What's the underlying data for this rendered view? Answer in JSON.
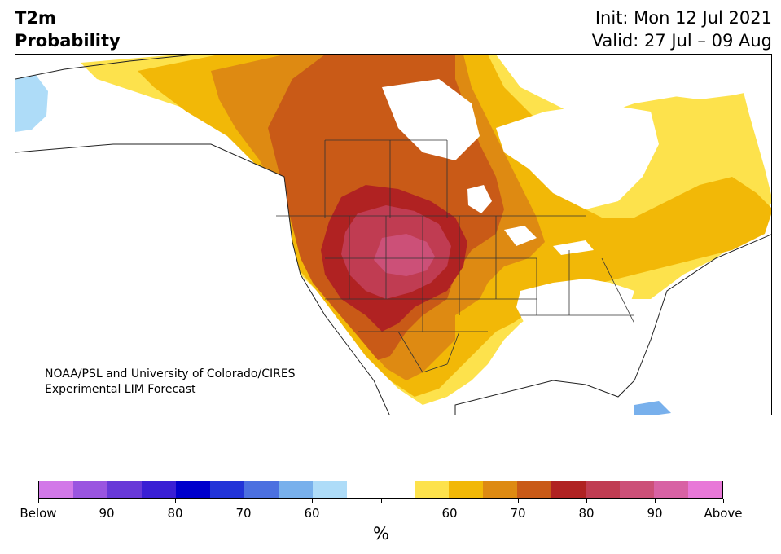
{
  "title": {
    "left_line1": "T2m",
    "left_line2": "Probability",
    "right_line1": "Init: Mon 12 Jul 2021",
    "right_line2": "Valid: 27 Jul – 09 Aug"
  },
  "credit": {
    "line1": "NOAA/PSL and University of Colorado/CIRES",
    "line2": "Experimental LIM Forecast"
  },
  "map": {
    "region": "North America",
    "variable": "T2m",
    "colors": {
      "land_neutral": "#ffffff",
      "ocean": "#ffffff",
      "borders": "#333333",
      "lakes": "#ffffff"
    }
  },
  "colorbar": {
    "unit": "%",
    "colors": [
      "#d278e8",
      "#9a55e0",
      "#6839d8",
      "#3a1fd4",
      "#0000cc",
      "#2234d8",
      "#4c70e0",
      "#78b0ec",
      "#aedcf8",
      "#ffffff",
      "#ffffff",
      "#fde24c",
      "#f2b807",
      "#de8a12",
      "#c95a17",
      "#b02222",
      "#c03c52",
      "#cc5078",
      "#d862a4",
      "#e878d8"
    ],
    "tick_labels": [
      "Below",
      "90",
      "80",
      "70",
      "60",
      "",
      "",
      "60",
      "70",
      "80",
      "90",
      "Above"
    ]
  }
}
